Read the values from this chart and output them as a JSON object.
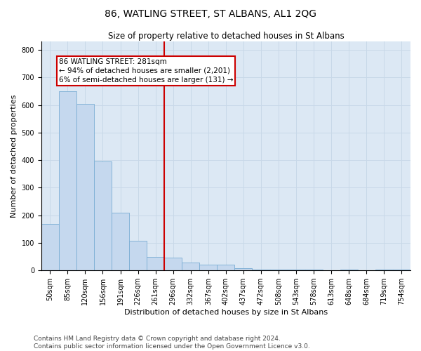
{
  "title": "86, WATLING STREET, ST ALBANS, AL1 2QG",
  "subtitle": "Size of property relative to detached houses in St Albans",
  "xlabel": "Distribution of detached houses by size in St Albans",
  "ylabel": "Number of detached properties",
  "categories": [
    "50sqm",
    "85sqm",
    "120sqm",
    "156sqm",
    "191sqm",
    "226sqm",
    "261sqm",
    "296sqm",
    "332sqm",
    "367sqm",
    "402sqm",
    "437sqm",
    "472sqm",
    "508sqm",
    "543sqm",
    "578sqm",
    "613sqm",
    "648sqm",
    "684sqm",
    "719sqm",
    "754sqm"
  ],
  "values": [
    170,
    650,
    605,
    395,
    210,
    108,
    50,
    47,
    28,
    22,
    22,
    8,
    4,
    4,
    4,
    3,
    0,
    3,
    0,
    3,
    3
  ],
  "bar_color": "#c5d8ee",
  "bar_edge_color": "#7aadd4",
  "grid_color": "#c8d8e8",
  "background_color": "#dce8f4",
  "vline_color": "#cc0000",
  "vline_pos": 7.0,
  "annotation_text": "86 WATLING STREET: 281sqm\n← 94% of detached houses are smaller (2,201)\n6% of semi-detached houses are larger (131) →",
  "annotation_box_color": "#ffffff",
  "annotation_box_edge_color": "#cc0000",
  "ylim": [
    0,
    830
  ],
  "yticks": [
    0,
    100,
    200,
    300,
    400,
    500,
    600,
    700,
    800
  ],
  "footer_text": "Contains HM Land Registry data © Crown copyright and database right 2024.\nContains public sector information licensed under the Open Government Licence v3.0.",
  "title_fontsize": 10,
  "subtitle_fontsize": 8.5,
  "xlabel_fontsize": 8,
  "ylabel_fontsize": 8,
  "tick_fontsize": 7,
  "annotation_fontsize": 7.5,
  "footer_fontsize": 6.5
}
